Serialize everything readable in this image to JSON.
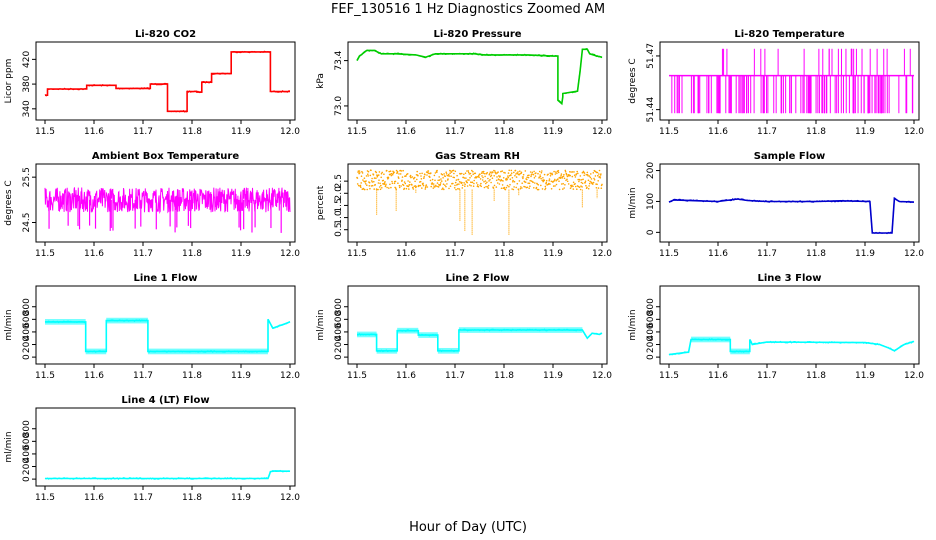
{
  "figure": {
    "title": "FEF_130516  1 Hz Diagnostics Zoomed AM",
    "xlabel": "Hour of Day (UTC)"
  },
  "chart_data": [
    {
      "type": "line",
      "title": "Li-820 CO2",
      "ylabel": "Licor ppm",
      "color": "#ff0000",
      "xlim": [
        11.5,
        12.0
      ],
      "ylim": [
        330,
        440
      ],
      "xticks": [
        "11.5",
        "11.6",
        "11.7",
        "11.8",
        "11.9",
        "12.0"
      ],
      "yticks": [
        {
          "v": 340,
          "label": "340"
        },
        {
          "v": 380,
          "label": "380"
        },
        {
          "v": 420,
          "label": "420"
        }
      ],
      "style": "step",
      "x": [
        11.5,
        11.505,
        11.505,
        11.585,
        11.585,
        11.645,
        11.645,
        11.715,
        11.715,
        11.75,
        11.75,
        11.79,
        11.79,
        11.81,
        11.81,
        11.82,
        11.82,
        11.84,
        11.84,
        11.88,
        11.88,
        11.96,
        11.96,
        12.0
      ],
      "y": [
        362,
        362,
        372,
        372,
        378,
        378,
        373,
        373,
        380,
        380,
        336,
        336,
        368,
        368,
        367,
        367,
        383,
        383,
        397,
        397,
        432,
        432,
        368,
        368
      ]
    },
    {
      "type": "line",
      "title": "Li-820 Pressure",
      "ylabel": "kPa",
      "color": "#00cc00",
      "xlim": [
        11.5,
        12.0
      ],
      "ylim": [
        72.92,
        73.52
      ],
      "xticks": [
        "11.5",
        "11.6",
        "11.7",
        "11.8",
        "11.9",
        "12.0"
      ],
      "yticks": [
        {
          "v": 73.0,
          "label": "73.0"
        },
        {
          "v": 73.4,
          "label": "73.4"
        }
      ],
      "style": "line",
      "x": [
        11.5,
        11.505,
        11.52,
        11.535,
        11.55,
        11.58,
        11.62,
        11.64,
        11.66,
        11.7,
        11.74,
        11.76,
        11.8,
        11.85,
        11.9,
        11.91,
        11.91,
        11.918,
        11.92,
        11.92,
        11.95,
        11.955,
        11.96,
        11.97,
        11.975,
        11.99,
        12.0
      ],
      "y": [
        73.4,
        73.44,
        73.49,
        73.49,
        73.46,
        73.46,
        73.45,
        73.43,
        73.46,
        73.46,
        73.46,
        73.45,
        73.45,
        73.45,
        73.44,
        73.44,
        73.05,
        73.02,
        73.08,
        73.11,
        73.13,
        73.3,
        73.5,
        73.5,
        73.46,
        73.44,
        73.43
      ]
    },
    {
      "type": "line",
      "title": "Li-820 Temperature",
      "ylabel": "degrees C",
      "color": "#ff00ff",
      "xlim": [
        11.5,
        12.0
      ],
      "ylim": [
        51.437,
        51.475
      ],
      "xticks": [
        "11.5",
        "11.6",
        "11.7",
        "11.8",
        "11.9",
        "12.0"
      ],
      "yticks": [
        {
          "v": 51.44,
          "label": "51.44"
        },
        {
          "v": 51.47,
          "label": "51.47"
        }
      ],
      "style": "flicker",
      "base": 51.459,
      "low": 51.438,
      "high": 51.474,
      "lowspikes": 120,
      "highspikes": 28
    },
    {
      "type": "line",
      "title": "Ambient Box Temperature",
      "ylabel": "degrees C",
      "color": "#ff00ff",
      "xlim": [
        11.5,
        12.0
      ],
      "ylim": [
        24.18,
        25.68
      ],
      "xticks": [
        "11.5",
        "11.6",
        "11.7",
        "11.8",
        "11.9",
        "12.0"
      ],
      "yticks": [
        {
          "v": 24.5,
          "label": "24.5"
        },
        {
          "v": 25.5,
          "label": "25.5"
        }
      ],
      "style": "noise",
      "center": 25.0,
      "amp": 0.55,
      "spikes": 24,
      "spikelow": 24.25
    },
    {
      "type": "scatter",
      "title": "Gas Stream RH",
      "ylabel": "percent",
      "color": "#ffa500",
      "xlim": [
        11.5,
        12.0
      ],
      "ylim": [
        0.2,
        3.0
      ],
      "xticks": [
        "11.5",
        "11.6",
        "11.7",
        "11.8",
        "11.9",
        "12.0"
      ],
      "yticks": [
        {
          "v": 0.5,
          "label": "0.5"
        },
        {
          "v": 1.0,
          "label": "1.0"
        },
        {
          "v": 1.5,
          "label": "1.5"
        },
        {
          "v": 2.0,
          "label": "2.0"
        },
        {
          "v": 2.5,
          "label": "2.5"
        }
      ],
      "style": "band",
      "lo": 2.15,
      "hi": 2.95,
      "dips": [
        [
          11.54,
          1.1
        ],
        [
          11.58,
          1.25
        ],
        [
          11.62,
          2.0
        ],
        [
          11.71,
          0.85
        ],
        [
          11.72,
          0.45
        ],
        [
          11.735,
          0.3
        ],
        [
          11.78,
          1.7
        ],
        [
          11.81,
          0.3
        ],
        [
          11.83,
          1.9
        ],
        [
          11.96,
          1.4
        ],
        [
          11.99,
          1.8
        ]
      ]
    },
    {
      "type": "line",
      "title": "Sample Flow",
      "ylabel": "ml/min",
      "color": "#0000cc",
      "xlim": [
        11.5,
        12.0
      ],
      "ylim": [
        -15,
        205
      ],
      "xticks": [
        "11.5",
        "11.6",
        "11.7",
        "11.8",
        "11.9",
        "12.0"
      ],
      "yticks": [
        {
          "v": 0,
          "label": "0"
        },
        {
          "v": 100,
          "label": "100"
        },
        {
          "v": 200,
          "label": "200"
        }
      ],
      "style": "line",
      "x": [
        11.5,
        11.51,
        11.56,
        11.6,
        11.64,
        11.66,
        11.7,
        11.8,
        11.85,
        11.91,
        11.915,
        11.95,
        11.955,
        11.96,
        11.97,
        12.0
      ],
      "y": [
        98,
        105,
        102,
        100,
        108,
        103,
        100,
        100,
        102,
        100,
        -2,
        -2,
        -2,
        110,
        100,
        98
      ]
    },
    {
      "type": "line",
      "title": "Line 1 Flow",
      "ylabel": "ml/min",
      "color": "#00ffff",
      "xlim": [
        11.5,
        12.0
      ],
      "ylim": [
        -30,
        1050
      ],
      "xticks": [
        "11.5",
        "11.6",
        "11.7",
        "11.8",
        "11.9",
        "12.0"
      ],
      "yticks": [
        {
          "v": 0,
          "label": "0"
        },
        {
          "v": 200,
          "label": "200"
        },
        {
          "v": 400,
          "label": "400"
        },
        {
          "v": 600,
          "label": "600"
        },
        {
          "v": 800,
          "label": "800"
        }
      ],
      "style": "step",
      "x": [
        11.5,
        11.583,
        11.583,
        11.625,
        11.625,
        11.71,
        11.71,
        11.955,
        11.955,
        11.965,
        11.99,
        12.0
      ],
      "y": [
        560,
        560,
        90,
        90,
        580,
        580,
        90,
        90,
        600,
        460,
        530,
        560
      ]
    },
    {
      "type": "line",
      "title": "Line 2 Flow",
      "ylabel": "ml/min",
      "color": "#00ffff",
      "xlim": [
        11.5,
        12.0
      ],
      "ylim": [
        -30,
        1050
      ],
      "xticks": [
        "11.5",
        "11.6",
        "11.7",
        "11.8",
        "11.9",
        "12.0"
      ],
      "yticks": [
        {
          "v": 0,
          "label": "0"
        },
        {
          "v": 200,
          "label": "200"
        },
        {
          "v": 400,
          "label": "400"
        },
        {
          "v": 600,
          "label": "600"
        },
        {
          "v": 800,
          "label": "800"
        }
      ],
      "style": "step",
      "x": [
        11.5,
        11.54,
        11.54,
        11.582,
        11.582,
        11.625,
        11.625,
        11.665,
        11.665,
        11.708,
        11.708,
        11.96,
        11.97,
        11.98,
        11.995,
        12.0
      ],
      "y": [
        360,
        360,
        100,
        100,
        420,
        420,
        350,
        350,
        100,
        100,
        430,
        430,
        300,
        380,
        360,
        380
      ]
    },
    {
      "type": "line",
      "title": "Line 3 Flow",
      "ylabel": "ml/min",
      "color": "#00ffff",
      "xlim": [
        11.5,
        12.0
      ],
      "ylim": [
        -30,
        1050
      ],
      "xticks": [
        "11.5",
        "11.6",
        "11.7",
        "11.8",
        "11.9",
        "12.0"
      ],
      "yticks": [
        {
          "v": 0,
          "label": "0"
        },
        {
          "v": 200,
          "label": "200"
        },
        {
          "v": 400,
          "label": "400"
        },
        {
          "v": 600,
          "label": "600"
        },
        {
          "v": 800,
          "label": "800"
        }
      ],
      "style": "step",
      "x": [
        11.5,
        11.54,
        11.54,
        11.545,
        11.625,
        11.625,
        11.665,
        11.665,
        11.67,
        11.7,
        11.9,
        11.93,
        11.95,
        11.96,
        11.98,
        12.0
      ],
      "y": [
        40,
        80,
        80,
        280,
        280,
        90,
        90,
        280,
        200,
        240,
        230,
        200,
        140,
        100,
        200,
        250
      ]
    },
    {
      "type": "line",
      "title": "Line 4 (LT) Flow",
      "ylabel": "ml/min",
      "color": "#00ffff",
      "xlim": [
        11.5,
        12.0
      ],
      "ylim": [
        -30,
        1050
      ],
      "xticks": [
        "11.5",
        "11.6",
        "11.7",
        "11.8",
        "11.9",
        "12.0"
      ],
      "yticks": [
        {
          "v": 0,
          "label": "0"
        },
        {
          "v": 200,
          "label": "200"
        },
        {
          "v": 400,
          "label": "400"
        },
        {
          "v": 600,
          "label": "600"
        },
        {
          "v": 800,
          "label": "800"
        }
      ],
      "style": "line",
      "x": [
        11.5,
        11.955,
        11.958,
        11.96,
        11.97,
        11.99,
        12.0
      ],
      "y": [
        10,
        10,
        70,
        120,
        130,
        125,
        125
      ]
    }
  ]
}
